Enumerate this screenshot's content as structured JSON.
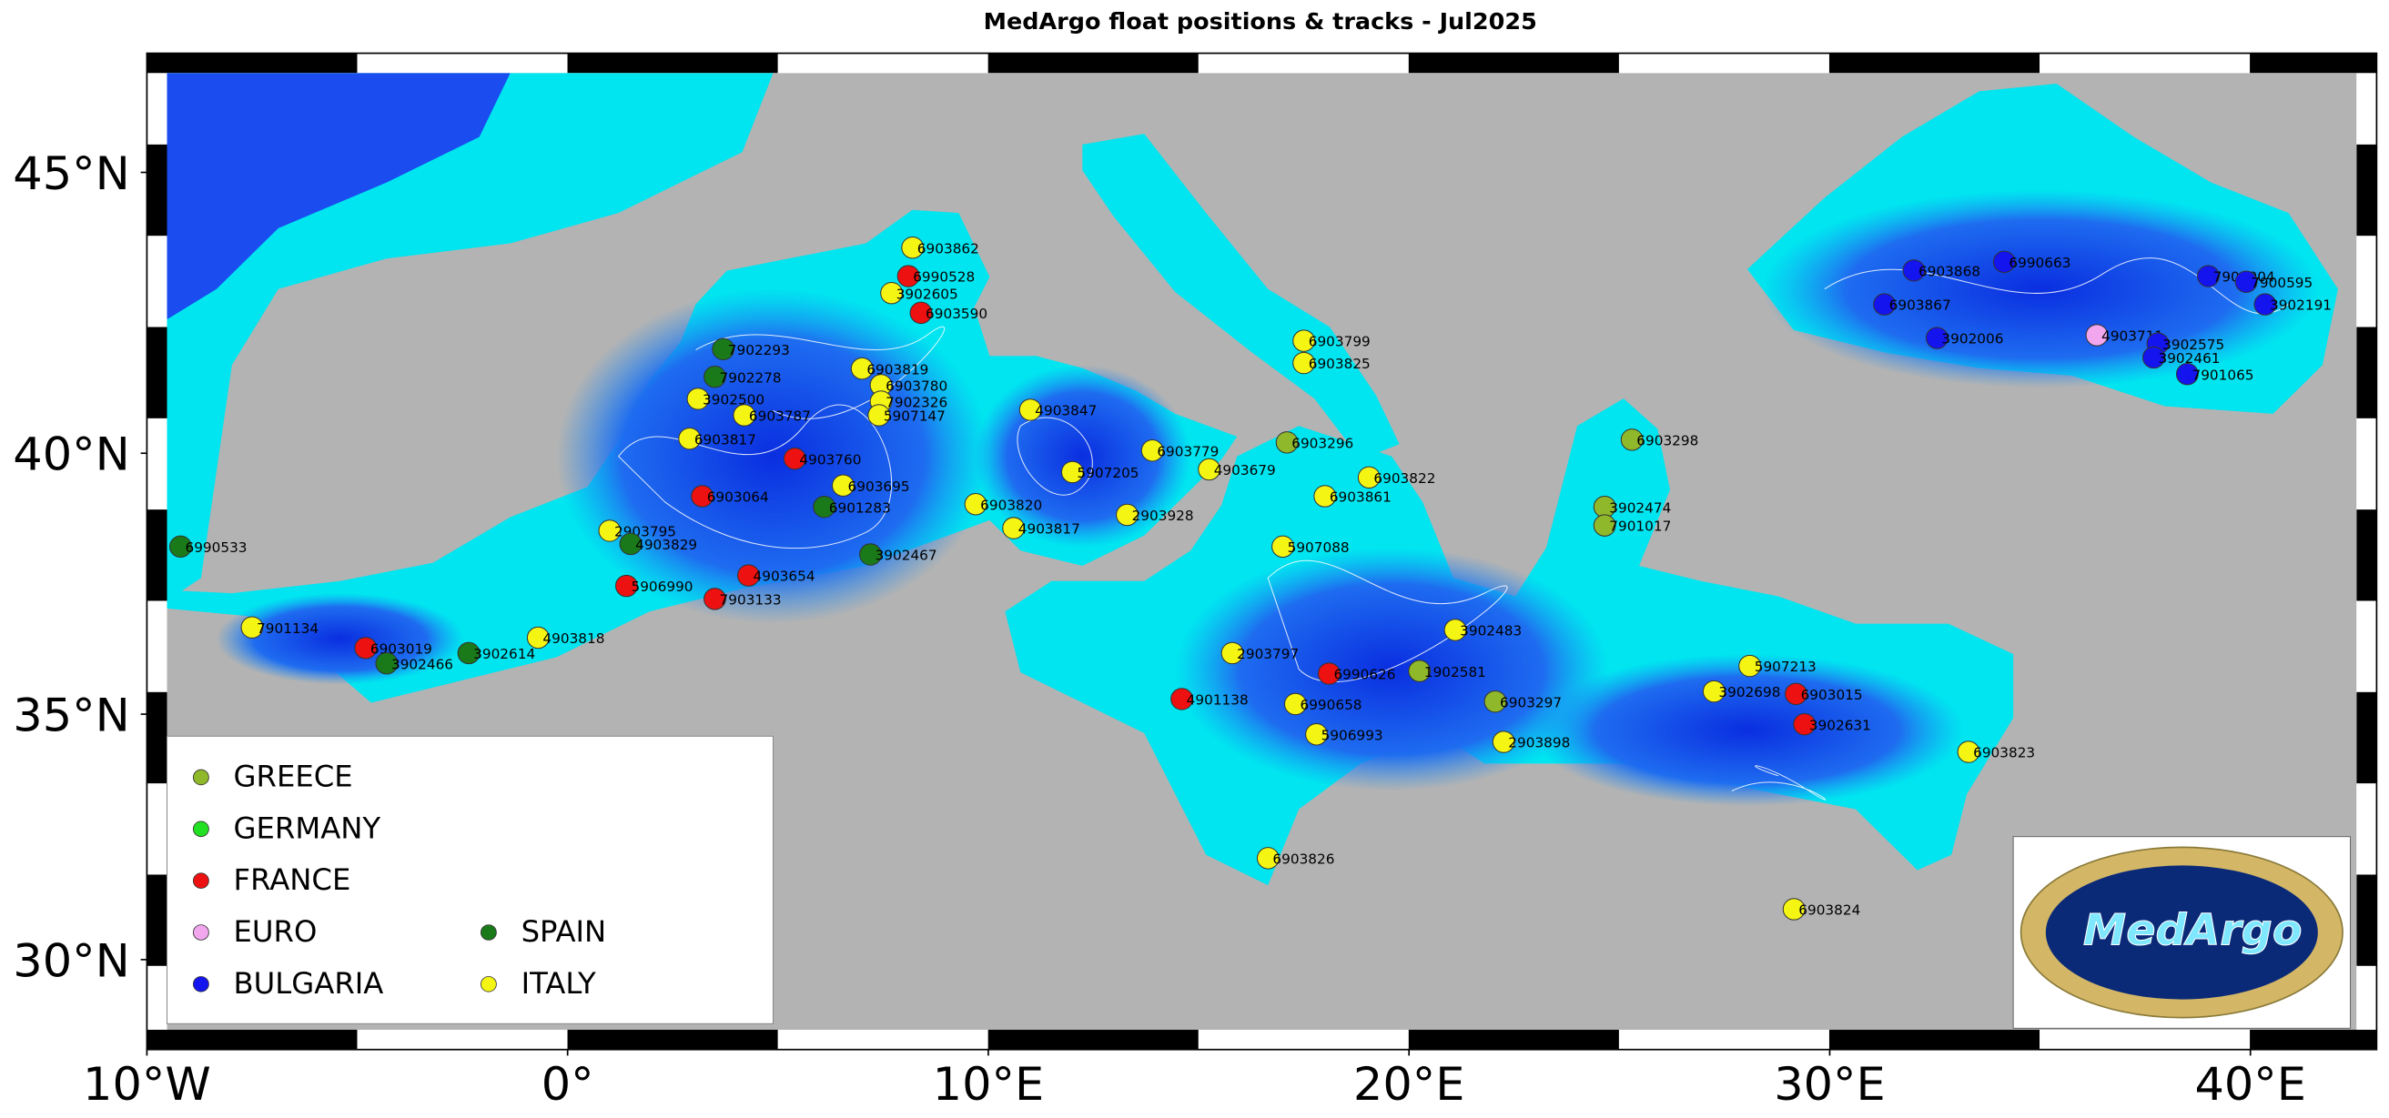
{
  "title": "MedArgo float positions & tracks - Jul2025",
  "logo": "MedArgo",
  "xlim": [
    -10,
    43
  ],
  "ylim": [
    28.1,
    47.0
  ],
  "xticks": [
    {
      "value": -10,
      "label": "10°W"
    },
    {
      "value": 0,
      "label": "0°"
    },
    {
      "value": 10,
      "label": "10°E"
    },
    {
      "value": 20,
      "label": "20°E"
    },
    {
      "value": 30,
      "label": "30°E"
    },
    {
      "value": 40,
      "label": "40°E"
    }
  ],
  "yticks": [
    {
      "value": 30,
      "label": "30°N"
    },
    {
      "value": 35,
      "label": "35°N"
    },
    {
      "value": 40,
      "label": "40°N"
    },
    {
      "value": 45,
      "label": "45°N"
    }
  ],
  "legend": [
    {
      "name": "GREECE",
      "color": "#8fb82a"
    },
    {
      "name": "GERMANY",
      "color": "#22e022"
    },
    {
      "name": "FRANCE",
      "color": "#ee1111"
    },
    {
      "name": "EURO",
      "color": "#f2a6ee"
    },
    {
      "name": "BULGARIA",
      "color": "#1414ee"
    },
    {
      "name": "SPAIN",
      "color": "#1a7a1a"
    },
    {
      "name": "ITALY",
      "color": "#f5f514"
    }
  ],
  "floats": [
    {
      "id": "6990533",
      "country": "SPAIN",
      "lon": -9.2,
      "lat": 38.25
    },
    {
      "id": "7901134",
      "country": "ITALY",
      "lon": -7.5,
      "lat": 36.7
    },
    {
      "id": "6903019",
      "country": "FRANCE",
      "lon": -4.8,
      "lat": 36.3
    },
    {
      "id": "3902466",
      "country": "SPAIN",
      "lon": -4.3,
      "lat": 36.0
    },
    {
      "id": "3902614",
      "country": "SPAIN",
      "lon": -2.35,
      "lat": 36.2
    },
    {
      "id": "4903818",
      "country": "ITALY",
      "lon": -0.7,
      "lat": 36.5
    },
    {
      "id": "5906990",
      "country": "FRANCE",
      "lon": 1.4,
      "lat": 37.5
    },
    {
      "id": "7903133",
      "country": "FRANCE",
      "lon": 3.5,
      "lat": 37.25
    },
    {
      "id": "4903654",
      "country": "FRANCE",
      "lon": 4.3,
      "lat": 37.7
    },
    {
      "id": "3902467",
      "country": "SPAIN",
      "lon": 7.2,
      "lat": 38.1
    },
    {
      "id": "2903795",
      "country": "ITALY",
      "lon": 1.0,
      "lat": 38.55
    },
    {
      "id": "4903829",
      "country": "SPAIN",
      "lon": 1.5,
      "lat": 38.3
    },
    {
      "id": "6903064",
      "country": "FRANCE",
      "lon": 3.2,
      "lat": 39.2
    },
    {
      "id": "4903760",
      "country": "FRANCE",
      "lon": 5.4,
      "lat": 39.9
    },
    {
      "id": "6903695",
      "country": "ITALY",
      "lon": 6.55,
      "lat": 39.4
    },
    {
      "id": "6901283",
      "country": "SPAIN",
      "lon": 6.1,
      "lat": 39.0
    },
    {
      "id": "3902500",
      "country": "ITALY",
      "lon": 3.1,
      "lat": 41.0
    },
    {
      "id": "6903787",
      "country": "ITALY",
      "lon": 4.2,
      "lat": 40.7
    },
    {
      "id": "6903817",
      "country": "ITALY",
      "lon": 2.9,
      "lat": 40.27
    },
    {
      "id": "7902293",
      "country": "SPAIN",
      "lon": 3.7,
      "lat": 41.9
    },
    {
      "id": "7902278",
      "country": "SPAIN",
      "lon": 3.5,
      "lat": 41.4
    },
    {
      "id": "6903819",
      "country": "ITALY",
      "lon": 7.0,
      "lat": 41.55
    },
    {
      "id": "6903780",
      "country": "ITALY",
      "lon": 7.45,
      "lat": 41.25
    },
    {
      "id": "7902326",
      "country": "ITALY",
      "lon": 7.45,
      "lat": 40.95
    },
    {
      "id": "5907147",
      "country": "ITALY",
      "lon": 7.4,
      "lat": 40.7
    },
    {
      "id": "6903862",
      "country": "ITALY",
      "lon": 8.2,
      "lat": 43.7
    },
    {
      "id": "6990528",
      "country": "FRANCE",
      "lon": 8.1,
      "lat": 43.2
    },
    {
      "id": "3902605",
      "country": "ITALY",
      "lon": 7.7,
      "lat": 42.9
    },
    {
      "id": "6903590",
      "country": "FRANCE",
      "lon": 8.4,
      "lat": 42.55
    },
    {
      "id": "6903820",
      "country": "ITALY",
      "lon": 9.7,
      "lat": 39.05
    },
    {
      "id": "4903817",
      "country": "ITALY",
      "lon": 10.6,
      "lat": 38.6
    },
    {
      "id": "4903847",
      "country": "ITALY",
      "lon": 11.0,
      "lat": 40.8
    },
    {
      "id": "5907205",
      "country": "ITALY",
      "lon": 12.0,
      "lat": 39.65
    },
    {
      "id": "6903779",
      "country": "ITALY",
      "lon": 13.9,
      "lat": 40.05
    },
    {
      "id": "4903679",
      "country": "ITALY",
      "lon": 15.25,
      "lat": 39.7
    },
    {
      "id": "2903928",
      "country": "ITALY",
      "lon": 13.3,
      "lat": 38.85
    },
    {
      "id": "6903296",
      "country": "GREECE",
      "lon": 17.1,
      "lat": 40.2
    },
    {
      "id": "6903799",
      "country": "ITALY",
      "lon": 17.5,
      "lat": 42.05
    },
    {
      "id": "6903825",
      "country": "ITALY",
      "lon": 17.5,
      "lat": 41.65
    },
    {
      "id": "6903822",
      "country": "ITALY",
      "lon": 19.05,
      "lat": 39.55
    },
    {
      "id": "6903861",
      "country": "ITALY",
      "lon": 18.0,
      "lat": 39.2
    },
    {
      "id": "5907088",
      "country": "ITALY",
      "lon": 17.0,
      "lat": 38.25
    },
    {
      "id": "3902483",
      "country": "ITALY",
      "lon": 21.1,
      "lat": 36.65
    },
    {
      "id": "2903797",
      "country": "ITALY",
      "lon": 15.8,
      "lat": 36.2
    },
    {
      "id": "6990626",
      "country": "FRANCE",
      "lon": 18.1,
      "lat": 35.8
    },
    {
      "id": "1902581",
      "country": "GREECE",
      "lon": 20.25,
      "lat": 35.85
    },
    {
      "id": "4901138",
      "country": "FRANCE",
      "lon": 14.6,
      "lat": 35.3
    },
    {
      "id": "6990658",
      "country": "ITALY",
      "lon": 17.3,
      "lat": 35.2
    },
    {
      "id": "5906993",
      "country": "ITALY",
      "lon": 17.8,
      "lat": 34.6
    },
    {
      "id": "6903826",
      "country": "ITALY",
      "lon": 16.65,
      "lat": 32.1
    },
    {
      "id": "2903898",
      "country": "ITALY",
      "lon": 22.25,
      "lat": 34.45
    },
    {
      "id": "6903297",
      "country": "GREECE",
      "lon": 22.05,
      "lat": 35.25
    },
    {
      "id": "6903298",
      "country": "GREECE",
      "lon": 25.3,
      "lat": 40.25
    },
    {
      "id": "3902474",
      "country": "GREECE",
      "lon": 24.65,
      "lat": 39.0
    },
    {
      "id": "7901017",
      "country": "GREECE",
      "lon": 24.65,
      "lat": 38.65
    },
    {
      "id": "5907213",
      "country": "ITALY",
      "lon": 28.1,
      "lat": 35.95
    },
    {
      "id": "3902698",
      "country": "ITALY",
      "lon": 27.25,
      "lat": 35.45
    },
    {
      "id": "6903015",
      "country": "FRANCE",
      "lon": 29.2,
      "lat": 35.4
    },
    {
      "id": "3902631",
      "country": "FRANCE",
      "lon": 29.4,
      "lat": 34.8
    },
    {
      "id": "6903823",
      "country": "ITALY",
      "lon": 33.3,
      "lat": 34.25
    },
    {
      "id": "6903824",
      "country": "ITALY",
      "lon": 29.15,
      "lat": 31.05
    },
    {
      "id": "6903868",
      "country": "BULGARIA",
      "lon": 32.0,
      "lat": 43.3
    },
    {
      "id": "6990663",
      "country": "BULGARIA",
      "lon": 34.15,
      "lat": 43.45
    },
    {
      "id": "6903867",
      "country": "BULGARIA",
      "lon": 31.3,
      "lat": 42.7
    },
    {
      "id": "3902006",
      "country": "BULGARIA",
      "lon": 32.55,
      "lat": 42.1
    },
    {
      "id": "4903711",
      "country": "EURO",
      "lon": 36.35,
      "lat": 42.15
    },
    {
      "id": "3902575",
      "country": "BULGARIA",
      "lon": 37.8,
      "lat": 42.0
    },
    {
      "id": "3902461",
      "country": "BULGARIA",
      "lon": 37.7,
      "lat": 41.75
    },
    {
      "id": "7901065",
      "country": "BULGARIA",
      "lon": 38.5,
      "lat": 41.45
    },
    {
      "id": "7902004",
      "country": "BULGARIA",
      "lon": 39.0,
      "lat": 43.2
    },
    {
      "id": "7900595",
      "country": "BULGARIA",
      "lon": 39.9,
      "lat": 43.1
    },
    {
      "id": "3902191",
      "country": "BULGARIA",
      "lon": 40.35,
      "lat": 42.7
    }
  ]
}
